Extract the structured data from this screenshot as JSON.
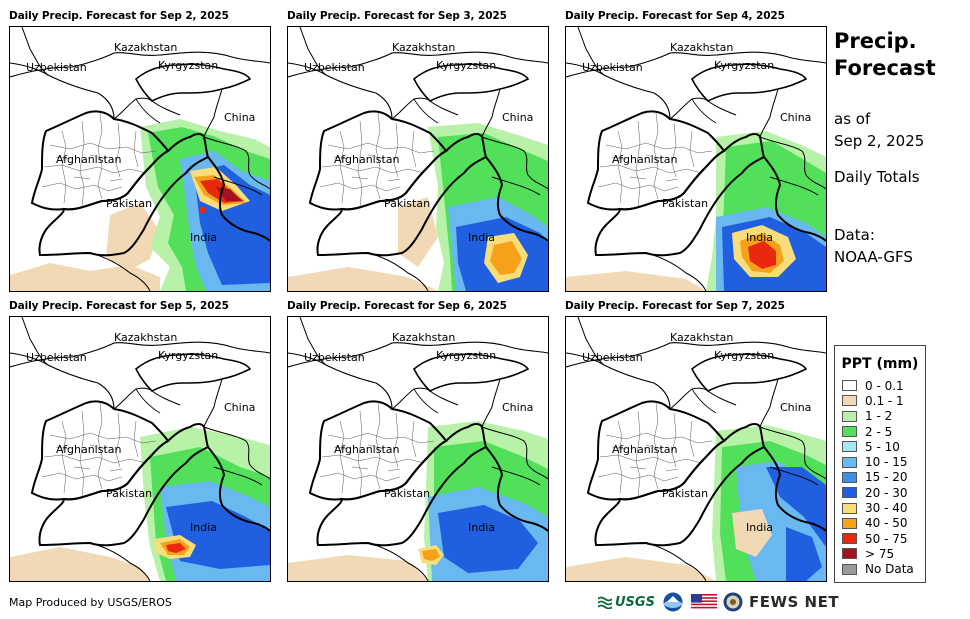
{
  "panels": [
    {
      "title": "Daily Precip. Forecast for Sep 2, 2025"
    },
    {
      "title": "Daily Precip. Forecast for Sep 3, 2025"
    },
    {
      "title": "Daily Precip. Forecast for Sep 4, 2025"
    },
    {
      "title": "Daily Precip. Forecast for Sep 5, 2025"
    },
    {
      "title": "Daily Precip. Forecast for Sep 6, 2025"
    },
    {
      "title": "Daily Precip. Forecast for Sep 7, 2025"
    }
  ],
  "country_labels": {
    "kazakhstan": "Kazakhstan",
    "uzbekistan": "Uzbekistan",
    "kyrgyzstan": "Kyrgyzstan",
    "china": "China",
    "afghanistan": "Afghanistan",
    "pakistan": "Pakistan",
    "india": "India"
  },
  "title_block": {
    "title_line1": "Precip.",
    "title_line2": "Forecast",
    "asof_line1": "as of",
    "asof_line2": "Sep 2, 2025",
    "totals": "Daily Totals",
    "data_line1": "Data:",
    "data_line2": "NOAA-GFS"
  },
  "legend": {
    "title": "PPT (mm)",
    "items": [
      {
        "label": "0 - 0.1",
        "color": "#ffffff"
      },
      {
        "label": "0.1 - 1",
        "color": "#f1d9b5"
      },
      {
        "label": "1 - 2",
        "color": "#b7f2a8"
      },
      {
        "label": "2 - 5",
        "color": "#52e05a"
      },
      {
        "label": "5 - 10",
        "color": "#a9e6f5"
      },
      {
        "label": "10 - 15",
        "color": "#6ab8f0"
      },
      {
        "label": "15 - 20",
        "color": "#3d8fe8"
      },
      {
        "label": "20 - 30",
        "color": "#1f5fe0"
      },
      {
        "label": "30 - 40",
        "color": "#f8de7a"
      },
      {
        "label": "40 - 50",
        "color": "#f5a21a"
      },
      {
        "label": "50 - 75",
        "color": "#e8280f"
      },
      {
        "label": "> 75",
        "color": "#a3121e"
      },
      {
        "label": "No Data",
        "color": "#999999"
      }
    ]
  },
  "footer": {
    "credit": "Map Produced by USGS/EROS",
    "usgs": "USGS",
    "fews": "FEWS NET"
  }
}
